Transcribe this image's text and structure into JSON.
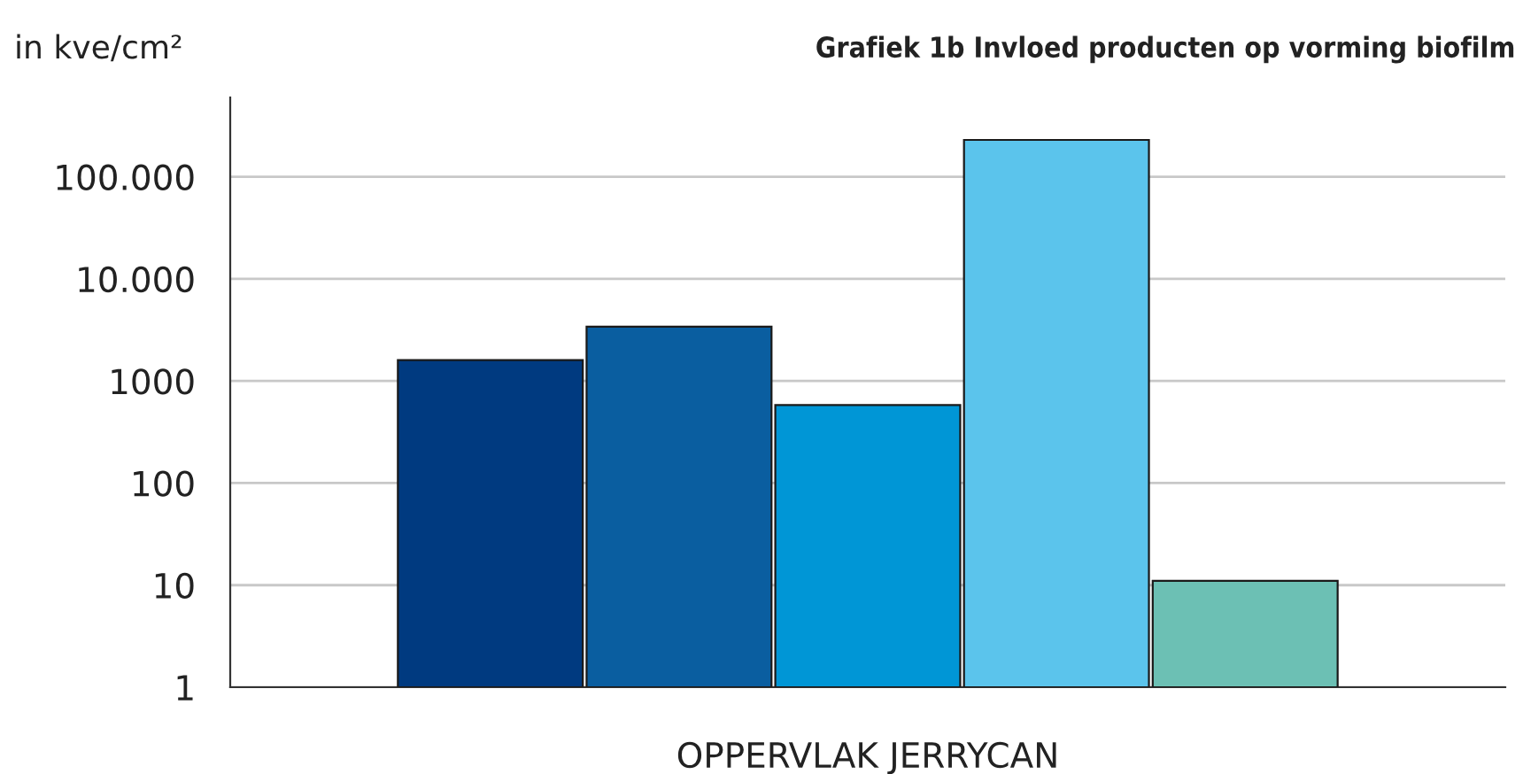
{
  "chart_data": {
    "type": "bar",
    "title": "Grafiek 1b Invloed producten op vorming biofilm",
    "ylabel": "in kve/cm²",
    "categories": [
      "OPPERVLAK JERRYCAN"
    ],
    "series": [
      {
        "color": "#003a80",
        "values": [
          1600
        ]
      },
      {
        "color": "#0a5ea0",
        "values": [
          3400
        ]
      },
      {
        "color": "#0096d6",
        "values": [
          580
        ]
      },
      {
        "color": "#5bc4ec",
        "values": [
          230000
        ]
      },
      {
        "color": "#6cc0b4",
        "values": [
          11
        ]
      }
    ],
    "log": true,
    "ylim": [
      1,
      600000
    ],
    "yticks": [
      1,
      10,
      100,
      1000,
      {
        "value": 10000,
        "label": "10.000"
      },
      {
        "value": 100000,
        "label": "100.000"
      }
    ],
    "grid": "y"
  }
}
